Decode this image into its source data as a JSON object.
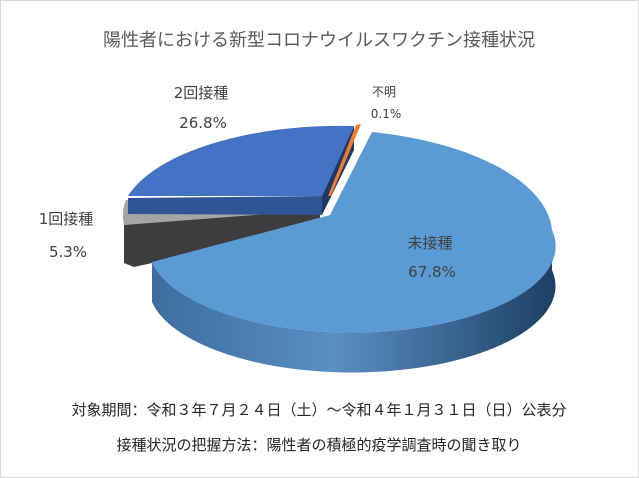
{
  "chart_data": {
    "type": "pie",
    "title": "陽性者における新型コロナウイルスワクチン接種状況",
    "slices": [
      {
        "label": "未接種",
        "percent_text": "67.8%",
        "value": 67.8,
        "color": "#5B9BD5"
      },
      {
        "label": "1回接種",
        "percent_text": "5.3%",
        "value": 5.3,
        "color": "#A5A5A5"
      },
      {
        "label": "2回接種",
        "percent_text": "26.8%",
        "value": 26.8,
        "color": "#4472C4"
      },
      {
        "label": "不明",
        "percent_text": "0.1%",
        "value": 0.1,
        "color": "#ED7D31"
      }
    ],
    "style": "3d-exploded",
    "legend": "none"
  },
  "footnotes": {
    "period": "対象期間：令和３年７月２４日（土）～令和４年１月３１日（日）公表分",
    "method": "接種状況の把握方法：陽性者の積極的疫学調査時の聞き取り"
  }
}
